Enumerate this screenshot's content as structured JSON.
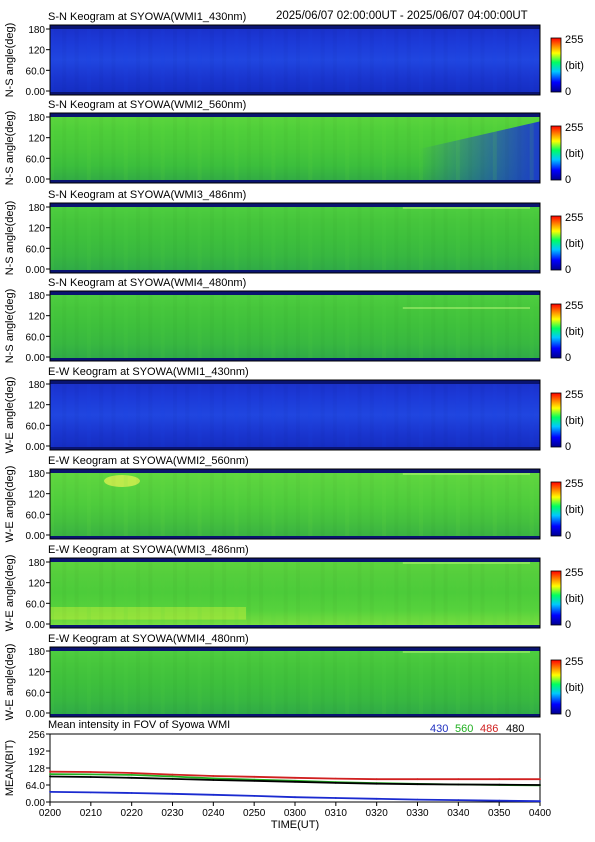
{
  "header": {
    "time_range": "2025/06/07 02:00:00UT - 2025/06/07 04:00:00UT"
  },
  "colorbar": {
    "min_label": "0",
    "max_label": "255",
    "unit_label": "(bit)"
  },
  "panels": [
    {
      "title": "S-N Keogram at SYOWA(WMI1_430nm)",
      "ylabel": "N-S angle(deg)",
      "yticks": [
        "180",
        "120",
        "60.0",
        "0.00"
      ],
      "theme": "blue"
    },
    {
      "title": "S-N Keogram at SYOWA(WMI2_560nm)",
      "ylabel": "N-S angle(deg)",
      "yticks": [
        "180",
        "120",
        "60.0",
        "0.00"
      ],
      "theme": "green_blue_corner"
    },
    {
      "title": "S-N Keogram at SYOWA(WMI3_486nm)",
      "ylabel": "N-S angle(deg)",
      "yticks": [
        "180",
        "120",
        "60.0",
        "0.00"
      ],
      "theme": "green"
    },
    {
      "title": "S-N Keogram at SYOWA(WMI4_480nm)",
      "ylabel": "N-S angle(deg)",
      "yticks": [
        "180",
        "120",
        "60.0",
        "0.00"
      ],
      "theme": "green"
    },
    {
      "title": "E-W Keogram at SYOWA(WMI1_430nm)",
      "ylabel": "W-E angle(deg)",
      "yticks": [
        "180",
        "120",
        "60.0",
        "0.00"
      ],
      "theme": "blue"
    },
    {
      "title": "E-W Keogram at SYOWA(WMI2_560nm)",
      "ylabel": "W-E angle(deg)",
      "yticks": [
        "180",
        "120",
        "60.0",
        "0.00"
      ],
      "theme": "green_bright"
    },
    {
      "title": "E-W Keogram at SYOWA(WMI3_486nm)",
      "ylabel": "W-E angle(deg)",
      "yticks": [
        "180",
        "120",
        "60.0",
        "0.00"
      ],
      "theme": "green_yellow"
    },
    {
      "title": "E-W Keogram at SYOWA(WMI4_480nm)",
      "ylabel": "W-E angle(deg)",
      "yticks": [
        "180",
        "120",
        "60.0",
        "0.00"
      ],
      "theme": "green"
    }
  ],
  "chart_data": {
    "type": "line",
    "title": "Mean intensity in FOV of Syowa WMI",
    "xlabel": "TIME(UT)",
    "ylabel": "MEAN(BIT)",
    "ylim": [
      0,
      256
    ],
    "yticks": [
      "256",
      "192",
      "128",
      "64.0",
      "0.00"
    ],
    "xtick_labels": [
      "0200",
      "0210",
      "0220",
      "0230",
      "0240",
      "0250",
      "0300",
      "0310",
      "0320",
      "0330",
      "0340",
      "0350",
      "0400"
    ],
    "x": [
      0,
      10,
      20,
      30,
      40,
      50,
      60,
      70,
      80,
      90,
      100,
      110,
      120
    ],
    "legend": [
      "430",
      "560",
      "486",
      "480"
    ],
    "legend_colors": [
      "#2030c0",
      "#20b020",
      "#d02020",
      "#000000"
    ],
    "series": [
      {
        "name": "430",
        "color": "#1a2ad0",
        "values": [
          38,
          36,
          34,
          31,
          27,
          23,
          18,
          15,
          12,
          9,
          7,
          5,
          3
        ]
      },
      {
        "name": "560",
        "color": "#20b020",
        "values": [
          105,
          104,
          102,
          96,
          89,
          84,
          80,
          75,
          71,
          68,
          66,
          64,
          63
        ]
      },
      {
        "name": "486",
        "color": "#d02020",
        "values": [
          114,
          113,
          109,
          103,
          98,
          95,
          91,
          88,
          86,
          86,
          86,
          86,
          86
        ]
      },
      {
        "name": "480",
        "color": "#000000",
        "values": [
          96,
          94,
          91,
          87,
          83,
          80,
          76,
          72,
          69,
          67,
          66,
          65,
          64
        ]
      }
    ]
  }
}
